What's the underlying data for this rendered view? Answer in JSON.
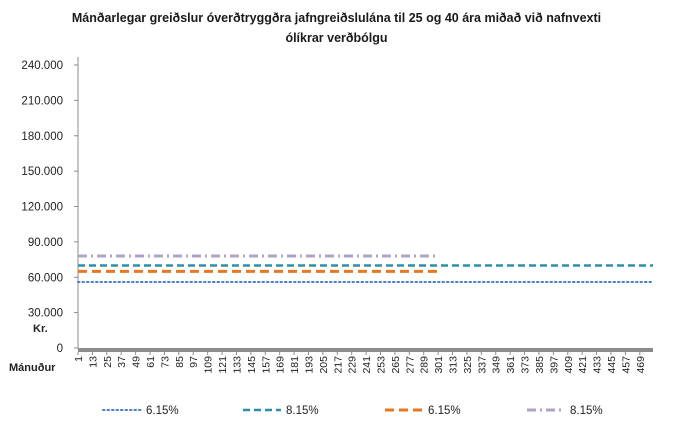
{
  "chart_data": {
    "type": "line",
    "title_line1": "Mánðarlegar greiðslur óverðtryggðra  jafngreiðslulána til 25 og 40 ára miðað við nafnvexti",
    "title_line2": "ólíkrar verðbólgu",
    "ylabel": "Kr.",
    "xlabel": "Mánuður",
    "ylim": [
      0,
      240000
    ],
    "yticks": [
      {
        "value": 0,
        "label": "0"
      },
      {
        "value": 30000,
        "label": "30.000"
      },
      {
        "value": 60000,
        "label": "60.000"
      },
      {
        "value": 90000,
        "label": "90.000"
      },
      {
        "value": 120000,
        "label": "120.000"
      },
      {
        "value": 150000,
        "label": "150.000"
      },
      {
        "value": 180000,
        "label": "180.000"
      },
      {
        "value": 210000,
        "label": "210.000"
      },
      {
        "value": 240000,
        "label": "240.000"
      }
    ],
    "xlim": [
      1,
      480
    ],
    "xticks": [
      "1",
      "13",
      "25",
      "37",
      "49",
      "61",
      "73",
      "85",
      "97",
      "109",
      "121",
      "133",
      "145",
      "157",
      "169",
      "181",
      "193",
      "205",
      "217",
      "229",
      "241",
      "253",
      "265",
      "277",
      "289",
      "301",
      "313",
      "325",
      "337",
      "349",
      "361",
      "373",
      "385",
      "397",
      "409",
      "421",
      "433",
      "445",
      "457",
      "469"
    ],
    "grid": false,
    "legend_position": "bottom",
    "series": [
      {
        "name": "6.15%",
        "x_start": 1,
        "x_end": 480,
        "value": 56000,
        "color": "#4a7ec8",
        "style": "dotted"
      },
      {
        "name": "8.15%",
        "x_start": 1,
        "x_end": 480,
        "value": 70000,
        "color": "#2e8fa8",
        "style": "dashed"
      },
      {
        "name": "6.15%",
        "x_start": 1,
        "x_end": 300,
        "value": 65000,
        "color": "#e87722",
        "style": "longdash"
      },
      {
        "name": "8.15%",
        "x_start": 1,
        "x_end": 300,
        "value": 78000,
        "color": "#b3a2c7",
        "style": "dashdot"
      }
    ]
  }
}
